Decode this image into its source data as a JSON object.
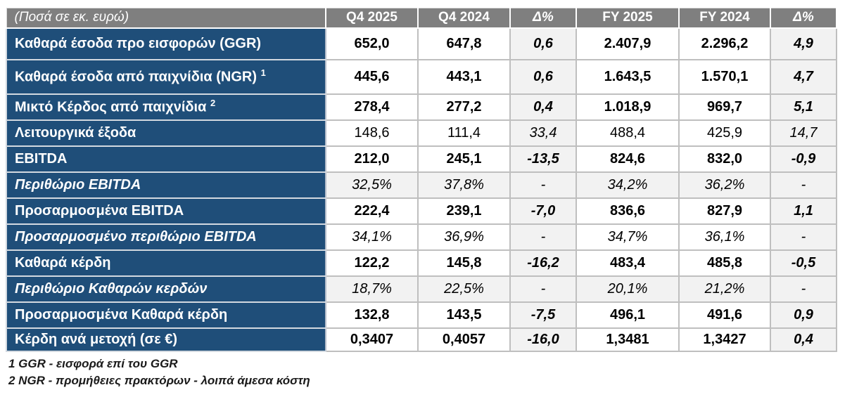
{
  "chart_data": {
    "type": "table",
    "title": "(Ποσά σε εκ. ευρώ)",
    "unit_label": "(Ποσά σε εκ. ευρώ)",
    "columns": [
      "Q4 2025",
      "Q4 2024",
      "Δ%",
      "FY 2025",
      "FY 2024",
      "Δ%"
    ],
    "rows": [
      {
        "label": "Καθαρά έσοδα προ εισφορών (GGR)",
        "sup": "",
        "values": [
          "652,0",
          "647,8",
          "0,6",
          "2.407,9",
          "2.296,2",
          "4,9"
        ],
        "emphasis": "bold",
        "bg": "white"
      },
      {
        "label": "Καθαρά έσοδα από παιχνίδια (NGR)",
        "sup": "1",
        "values": [
          "445,6",
          "443,1",
          "0,6",
          "1.643,5",
          "1.570,1",
          "4,7"
        ],
        "emphasis": "bold",
        "bg": "white"
      },
      {
        "label": "Μικτό Κέρδος από παιχνίδια",
        "sup": "2",
        "values": [
          "278,4",
          "277,2",
          "0,4",
          "1.018,9",
          "969,7",
          "5,1"
        ],
        "emphasis": "bold",
        "bg": "white"
      },
      {
        "label": "Λειτουργικά έξοδα",
        "sup": "",
        "values": [
          "148,6",
          "111,4",
          "33,4",
          "488,4",
          "425,9",
          "14,7"
        ],
        "emphasis": "plain",
        "bg": "white"
      },
      {
        "label": "EBITDA",
        "sup": "",
        "values": [
          "212,0",
          "245,1",
          "-13,5",
          "824,6",
          "832,0",
          "-0,9"
        ],
        "emphasis": "bold",
        "bg": "white"
      },
      {
        "label": "Περιθώριο EBITDA",
        "sup": "",
        "values": [
          "32,5%",
          "37,8%",
          "-",
          "34,2%",
          "36,2%",
          "-"
        ],
        "emphasis": "percent",
        "bg": "gray"
      },
      {
        "label": "Προσαρμοσμένα EBITDA",
        "sup": "",
        "values": [
          "222,4",
          "239,1",
          "-7,0",
          "836,6",
          "827,9",
          "1,1"
        ],
        "emphasis": "bold",
        "bg": "white"
      },
      {
        "label": "Προσαρμοσμένο περιθώριο EBITDA",
        "sup": "",
        "values": [
          "34,1%",
          "36,9%",
          "-",
          "34,7%",
          "36,1%",
          "-"
        ],
        "emphasis": "percent",
        "bg": "white"
      },
      {
        "label": "Καθαρά κέρδη",
        "sup": "",
        "values": [
          "122,2",
          "145,8",
          "-16,2",
          "483,4",
          "485,8",
          "-0,5"
        ],
        "emphasis": "bold",
        "bg": "white"
      },
      {
        "label": "Περιθώριο Καθαρών κερδών",
        "sup": "",
        "values": [
          "18,7%",
          "22,5%",
          "-",
          "20,1%",
          "21,2%",
          "-"
        ],
        "emphasis": "percent",
        "bg": "gray"
      },
      {
        "label": "Προσαρμοσμένα Καθαρά κέρδη",
        "sup": "",
        "values": [
          "132,8",
          "143,5",
          "-7,5",
          "496,1",
          "491,6",
          "0,9"
        ],
        "emphasis": "bold",
        "bg": "white"
      },
      {
        "label": "Κέρδη ανά μετοχή (σε €)",
        "sup": "",
        "values": [
          "0,3407",
          "0,4057",
          "-16,0",
          "1,3481",
          "1,3427",
          "0,4"
        ],
        "emphasis": "bold",
        "bg": "white"
      }
    ]
  },
  "footnotes": [
    "1 GGR - εισφορά επί του GGR",
    "2 NGR - προμήθειες πρακτόρων - λοιπά άμεσα κόστη"
  ],
  "colors": {
    "header_bg": "#7F7F7F",
    "label_bg": "#1F4E79",
    "shaded_cell_bg": "#F2F2F2",
    "grid_line": "#BFBFBF",
    "header_text": "#FFFFFF",
    "label_text": "#FFFFFF",
    "value_text": "#000000"
  }
}
